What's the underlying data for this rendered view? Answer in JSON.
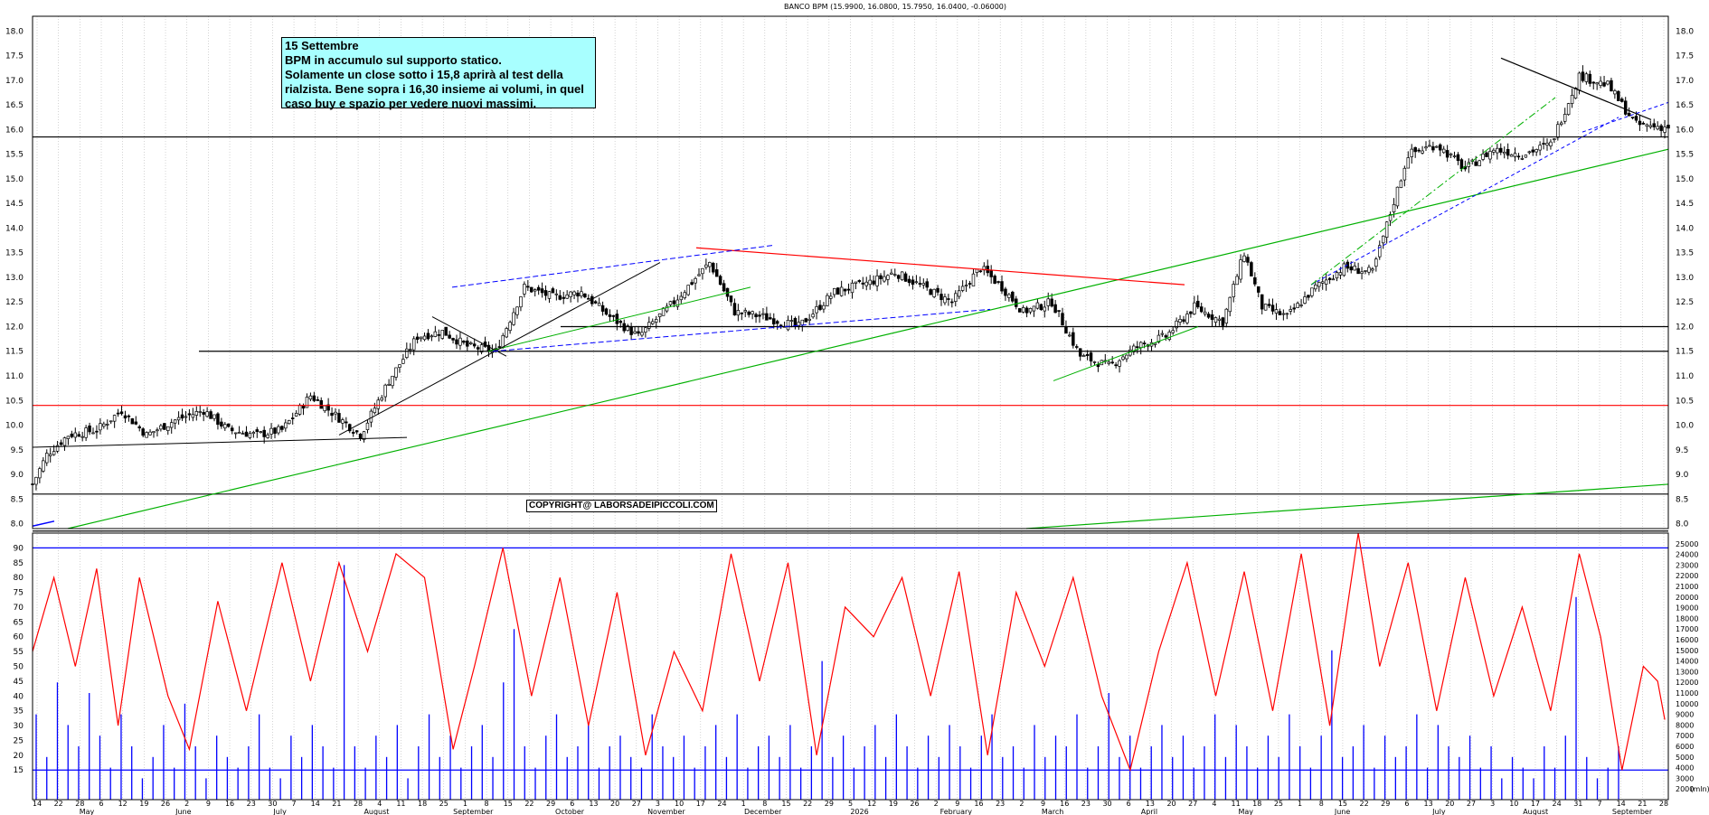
{
  "chart_title": "BANCO BPM (15.9900, 16.0800, 15.7950, 16.0400, -0.06000)",
  "annotation": {
    "lines": [
      "15 Settembre",
      "BPM in accumulo sul supporto statico.",
      "Solamente un close sotto i 15,8 aprirà al test della",
      "rialzista. Bene sopra i 16,30 insieme ai volumi, in quel",
      "caso buy e spazio per vedere nuovi massimi."
    ]
  },
  "copyright": "COPYRIGHT@ LABORSADEIPICCOLI.COM",
  "volume_unit_label": "(mln)",
  "colors": {
    "horizontal": "#000000",
    "red": "#ff0000",
    "green": "#00b000",
    "blue": "#0000ff",
    "note_bg": "#a8ffff"
  },
  "chart_data": [
    {
      "type": "candlestick",
      "title": "BANCO BPM (15.9900, 16.0800, 15.7950, 16.0400, -0.06000)",
      "ylim": [
        7.9,
        18.3
      ],
      "y_ticks": [
        8.0,
        8.5,
        9.0,
        9.5,
        10.0,
        10.5,
        11.0,
        11.5,
        12.0,
        12.5,
        13.0,
        13.5,
        14.0,
        14.5,
        15.0,
        15.5,
        16.0,
        16.5,
        17.0,
        17.5,
        18.0
      ],
      "last_ohlc": {
        "open": 15.99,
        "high": 16.08,
        "low": 15.795,
        "close": 16.04,
        "change": -0.06
      },
      "close_path": [
        [
          0,
          8.8
        ],
        [
          4,
          9.4
        ],
        [
          10,
          9.8
        ],
        [
          18,
          9.9
        ],
        [
          25,
          10.3
        ],
        [
          32,
          9.8
        ],
        [
          40,
          10.1
        ],
        [
          48,
          10.3
        ],
        [
          55,
          9.9
        ],
        [
          63,
          9.8
        ],
        [
          70,
          9.9
        ],
        [
          78,
          10.6
        ],
        [
          85,
          10.2
        ],
        [
          92,
          9.8
        ],
        [
          100,
          10.9
        ],
        [
          108,
          11.8
        ],
        [
          115,
          11.9
        ],
        [
          122,
          11.6
        ],
        [
          130,
          11.5
        ],
        [
          138,
          12.8
        ],
        [
          146,
          12.6
        ],
        [
          154,
          12.7
        ],
        [
          162,
          12.2
        ],
        [
          170,
          11.8
        ],
        [
          180,
          12.5
        ],
        [
          190,
          13.3
        ],
        [
          197,
          12.3
        ],
        [
          205,
          12.2
        ],
        [
          215,
          12.0
        ],
        [
          225,
          12.7
        ],
        [
          235,
          12.9
        ],
        [
          242,
          13.1
        ],
        [
          250,
          12.8
        ],
        [
          258,
          12.5
        ],
        [
          266,
          13.2
        ],
        [
          272,
          12.8
        ],
        [
          278,
          12.3
        ],
        [
          286,
          12.5
        ],
        [
          294,
          11.4
        ],
        [
          302,
          11.2
        ],
        [
          310,
          11.6
        ],
        [
          318,
          11.8
        ],
        [
          326,
          12.4
        ],
        [
          334,
          12.1
        ],
        [
          340,
          13.5
        ],
        [
          345,
          12.4
        ],
        [
          352,
          12.2
        ],
        [
          360,
          12.8
        ],
        [
          368,
          13.2
        ],
        [
          376,
          13.1
        ],
        [
          386,
          15.5
        ],
        [
          394,
          15.7
        ],
        [
          402,
          15.2
        ],
        [
          410,
          15.6
        ],
        [
          418,
          15.5
        ],
        [
          426,
          15.7
        ],
        [
          434,
          17.1
        ],
        [
          442,
          16.9
        ],
        [
          450,
          16.1
        ],
        [
          458,
          16.05
        ]
      ],
      "x_ticks": [
        "14",
        "22",
        "28",
        "6",
        "12",
        "19",
        "26",
        "2",
        "9",
        "16",
        "23",
        "30",
        "7",
        "14",
        "21",
        "28",
        "4",
        "11",
        "18",
        "25",
        "1",
        "8",
        "15",
        "22",
        "29",
        "6",
        "13",
        "20",
        "27",
        "3",
        "10",
        "17",
        "24",
        "1",
        "8",
        "15",
        "22",
        "29",
        "5",
        "12",
        "19",
        "26",
        "2",
        "9",
        "16",
        "23",
        "2",
        "9",
        "16",
        "23",
        "30",
        "6",
        "13",
        "20",
        "27",
        "4",
        "11",
        "18",
        "25",
        "1",
        "8",
        "15",
        "22",
        "29",
        "6",
        "13",
        "20",
        "27",
        "3",
        "10",
        "17",
        "24",
        "31",
        "7",
        "14",
        "21",
        "28"
      ],
      "month_labels": [
        "May",
        "June",
        "July",
        "August",
        "September",
        "October",
        "November",
        "December",
        "2026",
        "February",
        "March",
        "April",
        "May",
        "June",
        "July",
        "August",
        "September"
      ],
      "horizontal_lines": [
        15.85,
        12.0,
        11.5,
        10.4,
        8.6,
        7.85
      ],
      "trendlines": [
        {
          "color": "red",
          "from": [
            12.2,
            13.6
          ],
          "to": [
            0.69,
            12.85
          ]
        },
        {
          "color": "green",
          "from": [
            0.04,
            7.9
          ],
          "to": [
            1.0,
            15.6
          ]
        },
        {
          "color": "black",
          "from": [
            0.385,
            16.9
          ],
          "to": [
            0.92,
            16.2
          ]
        }
      ]
    },
    {
      "type": "bar+line",
      "series": [
        {
          "name": "",
          "color": "#0000ff",
          "kind": "volume bars"
        },
        {
          "name": "",
          "color": "#ff0000",
          "kind": "oscillator"
        }
      ],
      "left_ylim": [
        5,
        95
      ],
      "left_y_ticks": [
        15,
        20,
        25,
        30,
        35,
        40,
        45,
        50,
        55,
        60,
        65,
        70,
        75,
        80,
        85,
        90
      ],
      "right_ylim": [
        1000,
        26000
      ],
      "right_y_ticks": [
        2000,
        3000,
        4000,
        5000,
        6000,
        7000,
        8000,
        9000,
        10000,
        11000,
        12000,
        13000,
        14000,
        15000,
        16000,
        17000,
        18000,
        19000,
        20000,
        21000,
        22000,
        23000,
        24000,
        25000
      ],
      "reference_levels": [
        90,
        15
      ],
      "oscillator_path": [
        [
          0,
          55
        ],
        [
          6,
          80
        ],
        [
          12,
          50
        ],
        [
          18,
          83
        ],
        [
          24,
          30
        ],
        [
          30,
          80
        ],
        [
          38,
          40
        ],
        [
          44,
          22
        ],
        [
          52,
          72
        ],
        [
          60,
          35
        ],
        [
          70,
          85
        ],
        [
          78,
          45
        ],
        [
          86,
          85
        ],
        [
          94,
          55
        ],
        [
          102,
          88
        ],
        [
          110,
          80
        ],
        [
          118,
          22
        ],
        [
          124,
          50
        ],
        [
          132,
          90
        ],
        [
          140,
          40
        ],
        [
          148,
          80
        ],
        [
          156,
          30
        ],
        [
          164,
          75
        ],
        [
          172,
          20
        ],
        [
          180,
          55
        ],
        [
          188,
          35
        ],
        [
          196,
          88
        ],
        [
          204,
          45
        ],
        [
          212,
          85
        ],
        [
          220,
          20
        ],
        [
          228,
          70
        ],
        [
          236,
          60
        ],
        [
          244,
          80
        ],
        [
          252,
          40
        ],
        [
          260,
          82
        ],
        [
          268,
          20
        ],
        [
          276,
          75
        ],
        [
          284,
          50
        ],
        [
          292,
          80
        ],
        [
          300,
          40
        ],
        [
          308,
          15
        ],
        [
          316,
          55
        ],
        [
          324,
          85
        ],
        [
          332,
          40
        ],
        [
          340,
          82
        ],
        [
          348,
          35
        ],
        [
          356,
          88
        ],
        [
          364,
          30
        ],
        [
          372,
          95
        ],
        [
          378,
          50
        ],
        [
          386,
          85
        ],
        [
          394,
          35
        ],
        [
          402,
          80
        ],
        [
          410,
          40
        ],
        [
          418,
          70
        ],
        [
          426,
          35
        ],
        [
          434,
          88
        ],
        [
          440,
          60
        ],
        [
          446,
          15
        ],
        [
          452,
          50
        ],
        [
          456,
          45
        ],
        [
          458,
          32
        ]
      ],
      "volume_values": [
        9000,
        5000,
        12000,
        8000,
        6000,
        11000,
        7000,
        4000,
        9000,
        6000,
        3000,
        5000,
        8000,
        4000,
        10000,
        6000,
        3000,
        7000,
        5000,
        4000,
        6000,
        9000,
        4000,
        3000,
        7000,
        5000,
        8000,
        6000,
        4000,
        23000,
        6000,
        4000,
        7000,
        5000,
        8000,
        3000,
        6000,
        9000,
        5000,
        7000,
        4000,
        6000,
        8000,
        5000,
        12000,
        17000,
        6000,
        4000,
        7000,
        9000,
        5000,
        6000,
        8000,
        4000,
        6000,
        7000,
        5000,
        4000,
        9000,
        6000,
        5000,
        7000,
        4000,
        6000,
        8000,
        5000,
        9000,
        4000,
        6000,
        7000,
        5000,
        8000,
        4000,
        6000,
        14000,
        5000,
        7000,
        4000,
        6000,
        8000,
        5000,
        9000,
        6000,
        4000,
        7000,
        5000,
        8000,
        6000,
        4000,
        7000,
        9000,
        5000,
        6000,
        4000,
        8000,
        5000,
        7000,
        6000,
        9000,
        4000,
        6000,
        11000,
        5000,
        7000,
        4000,
        6000,
        8000,
        5000,
        7000,
        4000,
        6000,
        9000,
        5000,
        8000,
        6000,
        4000,
        7000,
        5000,
        9000,
        6000,
        4000,
        7000,
        15000,
        5000,
        6000,
        8000,
        4000,
        7000,
        5000,
        6000,
        9000,
        4000,
        8000,
        6000,
        5000,
        7000,
        4000,
        6000,
        3000,
        5000,
        4000,
        3000,
        6000,
        4000,
        7000,
        20000,
        5000,
        3000,
        4000,
        6000
      ]
    }
  ]
}
